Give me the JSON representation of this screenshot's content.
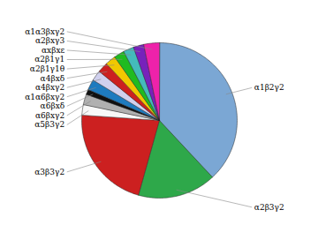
{
  "chart_data": {
    "type": "pie",
    "categories": [
      "α1β2γ2",
      "α2β3γ2",
      "α3β3γ2",
      "α5β3γ2",
      "α6βxγ2",
      "α6βxδ",
      "α1α6βxγ2",
      "α4βxγ2",
      "α4βxδ",
      "α2β1γ1θ",
      "α2β1γ1",
      "αxβxε",
      "α2βxγ3",
      "α1α3βxγ2"
    ],
    "values": [
      35,
      15,
      20,
      2,
      2,
      1,
      2,
      2,
      2,
      2,
      2,
      2,
      2,
      3
    ],
    "colors": [
      "#7ba7d4",
      "#2ea84a",
      "#cc2020",
      "#f8f8f8",
      "#b0b0b0",
      "#101010",
      "#1e7bbf",
      "#d0d0ee",
      "#cc2020",
      "#f0c800",
      "#20bb20",
      "#44bbbb",
      "#7722bb",
      "#ee22aa"
    ]
  }
}
